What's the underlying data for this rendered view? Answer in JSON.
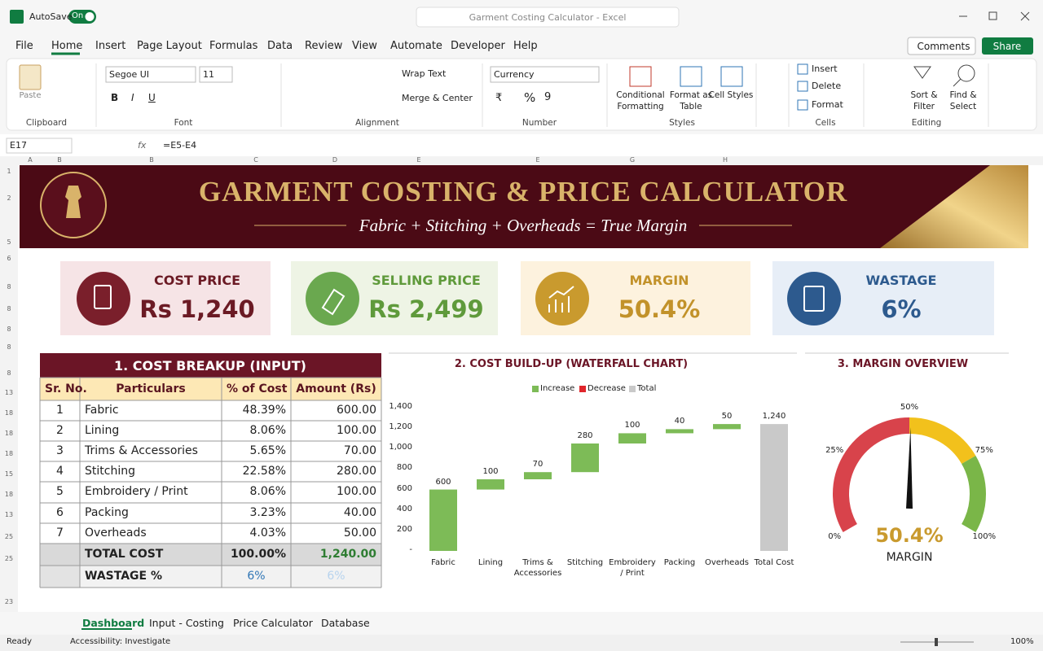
{
  "titlebar": {
    "autosave": "AutoSave",
    "toggle": "On",
    "search": "Garment Costing Calculator - Excel"
  },
  "menu": {
    "tabs": [
      "File",
      "Home",
      "Insert",
      "Page Layout",
      "Formulas",
      "Data",
      "Review",
      "View",
      "Automate",
      "Developer",
      "Help"
    ],
    "comments": "Comments",
    "share": "Share"
  },
  "ribbon": {
    "clipboard": {
      "paste": "Paste",
      "label": "Clipboard"
    },
    "font": {
      "name": "Segoe UI",
      "size": "11",
      "bold": "B",
      "italic": "I",
      "underline": "U",
      "label": "Font"
    },
    "alignment": {
      "wrap": "Wrap Text",
      "merge": "Merge & Center",
      "label": "Alignment"
    },
    "number": {
      "format": "Currency",
      "currency": "₹",
      "percent": "%",
      "comma": "9",
      "label": "Number"
    },
    "styles": {
      "buttons": [
        "Conditional Formatting",
        "Format as Table",
        "Cell Styles"
      ],
      "label": "Styles"
    },
    "cells": {
      "buttons": [
        "Insert",
        "Delete",
        "Format"
      ],
      "label": "Cells"
    },
    "editing": {
      "buttons": [
        "Sort & Filter",
        "Find & Select"
      ],
      "label": "Editing"
    }
  },
  "formula_bar": {
    "name_box": "E17",
    "fx": "fx",
    "formula": "=E5-E4"
  },
  "columns": [
    "A",
    "B",
    "B",
    "C",
    "D",
    "E",
    "E",
    "G",
    "H"
  ],
  "rows": [
    "1",
    "2",
    "5",
    "6",
    "8",
    "8",
    "8",
    "8",
    "8",
    "13",
    "18",
    "18",
    "18",
    "15",
    "18",
    "13",
    "25",
    "25",
    "23"
  ],
  "banner": {
    "title": "GARMENT COSTING & PRICE CALCULATOR",
    "subtitle": "Fabric + Stitching + Overheads = True Margin"
  },
  "kpis": [
    {
      "label": "COST PRICE",
      "value": "Rs 1,240"
    },
    {
      "label": "SELLING PRICE",
      "value": "Rs 2,499"
    },
    {
      "label": "MARGIN",
      "value": "50.4%"
    },
    {
      "label": "WASTAGE",
      "value": "6%"
    }
  ],
  "table": {
    "title": "1. COST BREAKUP (INPUT)",
    "headers": [
      "Sr. No.",
      "Particulars",
      "% of Cost",
      "Amount (Rs)"
    ],
    "rows": [
      [
        "1",
        "Fabric",
        "48.39%",
        "600.00"
      ],
      [
        "2",
        "Lining",
        "8.06%",
        "100.00"
      ],
      [
        "3",
        "Trims & Accessories",
        "5.65%",
        "70.00"
      ],
      [
        "4",
        "Stitching",
        "22.58%",
        "280.00"
      ],
      [
        "5",
        "Embroidery / Print",
        "8.06%",
        "100.00"
      ],
      [
        "6",
        "Packing",
        "3.23%",
        "40.00"
      ],
      [
        "7",
        "Overheads",
        "4.03%",
        "50.00"
      ]
    ],
    "total": [
      "TOTAL COST",
      "100.00%",
      "1,240.00"
    ],
    "wastage": [
      "WASTAGE %",
      "6%",
      "6%"
    ]
  },
  "waterfall": {
    "type": "waterfall",
    "title": "2. COST BUILD-UP (WATERFALL CHART)",
    "legend": [
      {
        "name": "Increase",
        "color": "#7dbb57"
      },
      {
        "name": "Decrease",
        "color": "#e0262b"
      },
      {
        "name": "Total",
        "color": "#c9c9c9"
      }
    ],
    "categories": [
      "Fabric",
      "Lining",
      "Trims & Accessories",
      "Stitching",
      "Embroidery / Print",
      "Packing",
      "Overheads",
      "Total Cost"
    ],
    "values": [
      600,
      100,
      70,
      280,
      100,
      40,
      50,
      1240
    ],
    "value_labels": [
      "600",
      "100",
      "70",
      "280",
      "100",
      "40",
      "50",
      "1,240"
    ],
    "last_is_total": true,
    "ylim": [
      0,
      1400
    ],
    "yticks": [
      {
        "value": 0,
        "label": "-"
      },
      200,
      400,
      600,
      800,
      {
        "value": 1000,
        "label": "1,000"
      },
      {
        "value": 1200,
        "label": "1,200"
      },
      {
        "value": 1400,
        "label": "1,400"
      }
    ]
  },
  "gauge": {
    "type": "gauge",
    "title": "3. MARGIN OVERVIEW",
    "value": 50.4,
    "value_label": "50.4%",
    "label": "MARGIN",
    "lim": [
      0,
      100
    ],
    "ticks": [
      {
        "value": 0,
        "label": "0%"
      },
      {
        "value": 25,
        "label": "25%"
      },
      {
        "value": 50,
        "label": "50%"
      },
      {
        "value": 75,
        "label": "75%"
      },
      {
        "value": 100,
        "label": "100%"
      }
    ],
    "bands": [
      {
        "from": 0,
        "to": 50,
        "color": "#d8434b"
      },
      {
        "from": 50,
        "to": 75,
        "color": "#f2c11c"
      },
      {
        "from": 75,
        "to": 100,
        "color": "#7ab648"
      }
    ]
  },
  "sheet_tabs": [
    "Dashboard",
    "Input - Costing",
    "Price Calculator",
    "Database"
  ],
  "status": {
    "ready": "Ready",
    "accessibility": "Accessibility: Investigate",
    "zoom": "100%"
  }
}
